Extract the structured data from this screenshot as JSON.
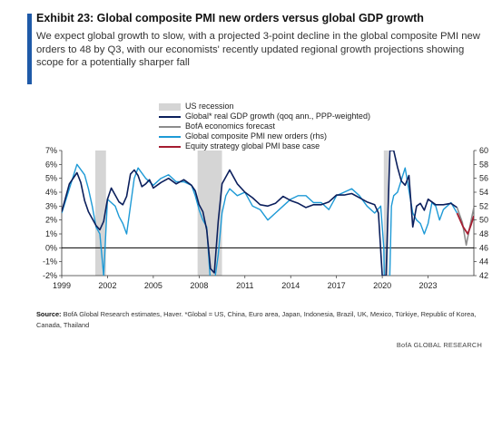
{
  "header": {
    "title": "Exhibit 23: Global composite PMI new orders versus global GDP growth",
    "subtitle": "We expect global growth to slow, with a projected 3-point decline in the global composite PMI new orders to 48 by Q3, with our economists' recently updated regional growth projections showing scope for a potentially sharper fall"
  },
  "footer": {
    "source_label": "Source:",
    "source_text": " BofA Global Research estimates, Haver. *Global = US, China, Euro area, Japan, Indonesia, Brazil, UK, Mexico, Türkiye, Republic of Korea, Canada, Thailand",
    "credit": "BofA GLOBAL RESEARCH"
  },
  "colors": {
    "gdp": "#0b1f5c",
    "forecast": "#8c8c8c",
    "pmi": "#1e9ad6",
    "pmi_forecast": "#a51c30",
    "recession": "#d5d5d5",
    "accent": "#1f5aa8"
  },
  "chart_data": {
    "type": "line",
    "x_range": [
      1999,
      2026
    ],
    "x_ticks": [
      "1999",
      "2002",
      "2005",
      "2008",
      "2011",
      "2014",
      "2017",
      "2020",
      "2023"
    ],
    "x_tick_years": [
      1999,
      2002,
      2005,
      2008,
      2011,
      2014,
      2017,
      2020,
      2023
    ],
    "y_left": {
      "min": -2,
      "max": 7,
      "ticks": [
        "-2%",
        "-1%",
        "0%",
        "1%",
        "2%",
        "3%",
        "4%",
        "5%",
        "6%",
        "7%"
      ],
      "tick_values": [
        -2,
        -1,
        0,
        1,
        2,
        3,
        4,
        5,
        6,
        7
      ]
    },
    "y_right": {
      "min": 42,
      "max": 60,
      "ticks": [
        "42",
        "44",
        "46",
        "48",
        "50",
        "52",
        "54",
        "56",
        "58",
        "60"
      ],
      "tick_values": [
        42,
        44,
        46,
        48,
        50,
        52,
        54,
        56,
        58,
        60
      ]
    },
    "legend": [
      {
        "key": "recession",
        "label": "US recession",
        "kind": "rect"
      },
      {
        "key": "gdp",
        "label": "Global* real GDP growth (qoq ann., PPP-weighted)",
        "kind": "line"
      },
      {
        "key": "forecast",
        "label": "BofA economics forecast",
        "kind": "line"
      },
      {
        "key": "pmi",
        "label": "Global composite PMI new orders (rhs)",
        "kind": "line"
      },
      {
        "key": "pmi_forecast",
        "label": "Equity strategy global PMI base case",
        "kind": "line"
      }
    ],
    "recessions": [
      [
        2001.2,
        2001.9
      ],
      [
        2007.9,
        2009.5
      ],
      [
        2020.1,
        2020.4
      ]
    ],
    "series": [
      {
        "name": "Global* real GDP growth (qoq ann., PPP-weighted)",
        "key": "gdp",
        "axis": "left",
        "x": [
          1999.0,
          1999.5,
          2000.0,
          2000.25,
          2000.5,
          2000.75,
          2001.0,
          2001.25,
          2001.5,
          2001.75,
          2002.0,
          2002.25,
          2002.5,
          2002.75,
          2003.0,
          2003.25,
          2003.5,
          2003.75,
          2004.0,
          2004.25,
          2004.5,
          2004.75,
          2005.0,
          2005.5,
          2006.0,
          2006.5,
          2007.0,
          2007.5,
          2007.75,
          2008.0,
          2008.25,
          2008.5,
          2008.75,
          2009.0,
          2009.25,
          2009.5,
          2009.75,
          2010.0,
          2010.5,
          2011.0,
          2011.5,
          2012.0,
          2012.5,
          2013.0,
          2013.5,
          2014.0,
          2014.5,
          2015.0,
          2015.5,
          2016.0,
          2016.5,
          2017.0,
          2017.5,
          2018.0,
          2018.5,
          2019.0,
          2019.5,
          2019.75,
          2020.0,
          2020.25,
          2020.5,
          2020.75,
          2021.0,
          2021.25,
          2021.5,
          2021.75,
          2022.0,
          2022.25,
          2022.5,
          2022.75,
          2023.0,
          2023.5,
          2024.0,
          2024.5,
          2024.9
        ],
        "values": [
          2.6,
          4.6,
          5.4,
          4.7,
          3.4,
          2.6,
          2.1,
          1.6,
          1.3,
          1.9,
          3.5,
          4.3,
          3.8,
          3.3,
          3.1,
          3.7,
          5.3,
          5.6,
          5.2,
          4.4,
          4.6,
          4.9,
          4.3,
          4.7,
          5.0,
          4.6,
          4.9,
          4.5,
          4.1,
          3.1,
          2.6,
          1.3,
          -1.5,
          -1.8,
          1.9,
          4.6,
          5.1,
          5.6,
          4.6,
          4.0,
          3.6,
          3.1,
          3.0,
          3.2,
          3.7,
          3.4,
          3.2,
          2.9,
          3.1,
          3.1,
          3.3,
          3.8,
          3.8,
          3.9,
          3.6,
          3.3,
          3.1,
          2.5,
          -2.0,
          -2.0,
          7.0,
          7.0,
          5.8,
          4.8,
          4.5,
          5.2,
          1.5,
          3.0,
          3.2,
          2.7,
          3.5,
          3.1,
          3.1,
          3.2,
          2.9
        ]
      },
      {
        "name": "BofA economics forecast",
        "key": "forecast",
        "axis": "left",
        "x": [
          2024.9,
          2025.25,
          2025.5,
          2025.75,
          2026.0
        ],
        "values": [
          2.9,
          1.8,
          0.2,
          1.6,
          2.9
        ]
      },
      {
        "name": "Global composite PMI new orders (rhs)",
        "key": "pmi",
        "axis": "right",
        "x": [
          1999.0,
          1999.5,
          2000.0,
          2000.5,
          2000.75,
          2001.0,
          2001.25,
          2001.5,
          2001.75,
          2002.0,
          2002.25,
          2002.5,
          2002.75,
          2003.0,
          2003.25,
          2003.5,
          2003.75,
          2004.0,
          2004.5,
          2005.0,
          2005.5,
          2006.0,
          2006.5,
          2007.0,
          2007.5,
          2007.75,
          2008.0,
          2008.25,
          2008.5,
          2008.75,
          2009.0,
          2009.25,
          2009.5,
          2009.75,
          2010.0,
          2010.5,
          2011.0,
          2011.5,
          2012.0,
          2012.5,
          2013.0,
          2013.5,
          2014.0,
          2014.5,
          2015.0,
          2015.5,
          2016.0,
          2016.5,
          2017.0,
          2017.5,
          2018.0,
          2018.5,
          2019.0,
          2019.5,
          2019.9,
          2020.1,
          2020.25,
          2020.4,
          2020.6,
          2020.75,
          2021.0,
          2021.5,
          2022.0,
          2022.25,
          2022.5,
          2022.75,
          2023.0,
          2023.25,
          2023.5,
          2023.75,
          2024.0,
          2024.5,
          2024.9
        ],
        "values": [
          51.0,
          54.5,
          58.0,
          56.5,
          54.5,
          52.0,
          49.0,
          48.0,
          42.0,
          53.0,
          52.5,
          52.0,
          50.5,
          49.5,
          48.0,
          52.0,
          56.0,
          57.5,
          56.0,
          55.0,
          56.0,
          56.5,
          55.5,
          55.5,
          55.0,
          53.5,
          51.5,
          50.0,
          49.0,
          41.0,
          41.0,
          45.0,
          51.0,
          53.5,
          54.5,
          53.5,
          54.0,
          52.0,
          51.5,
          50.0,
          51.0,
          52.0,
          53.0,
          53.5,
          53.5,
          52.5,
          52.5,
          51.5,
          53.5,
          54.0,
          54.5,
          53.5,
          52.0,
          51.0,
          52.0,
          46.0,
          25.0,
          33.0,
          52.0,
          53.5,
          54.0,
          57.5,
          51.0,
          50.0,
          49.5,
          48.0,
          49.5,
          52.5,
          52.0,
          50.0,
          51.5,
          52.5,
          51.0
        ]
      },
      {
        "name": "Equity strategy global PMI base case",
        "key": "pmi_forecast",
        "axis": "right",
        "x": [
          2024.9,
          2025.3,
          2025.6,
          2025.8,
          2026.0
        ],
        "values": [
          51.0,
          49.0,
          48.0,
          49.2,
          50.6
        ]
      }
    ]
  }
}
